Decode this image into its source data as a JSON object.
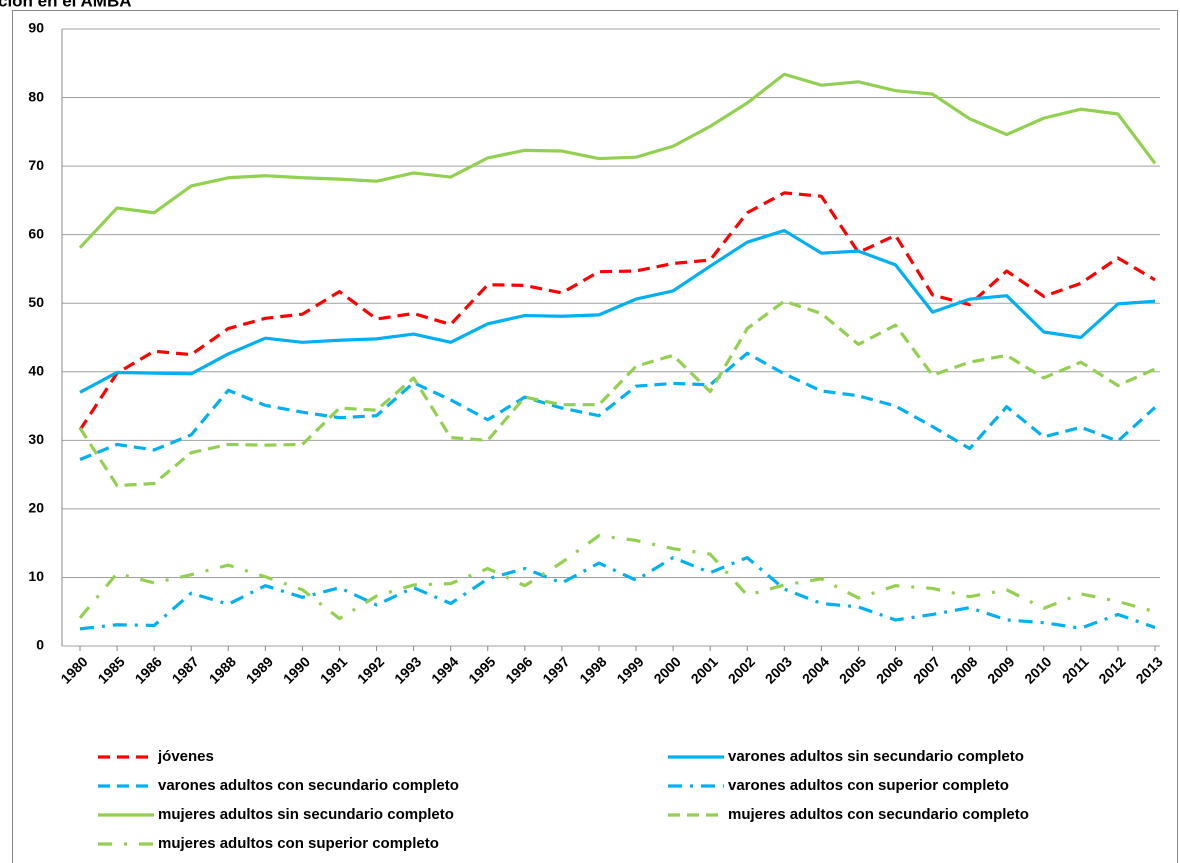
{
  "chart_data": {
    "type": "line",
    "title": "ción en el AMBA",
    "categories": [
      "1980",
      "1985",
      "1986",
      "1987",
      "1988",
      "1989",
      "1990",
      "1991",
      "1992",
      "1993",
      "1994",
      "1995",
      "1996",
      "1997",
      "1998",
      "1999",
      "2000",
      "2001",
      "2002",
      "2003",
      "2004",
      "2005",
      "2006",
      "2007",
      "2008",
      "2009",
      "2010",
      "2011",
      "2012",
      "2013"
    ],
    "ylim": [
      0,
      90
    ],
    "yticks": [
      0,
      10,
      20,
      30,
      40,
      50,
      60,
      70,
      80,
      90
    ],
    "grid": true,
    "series": [
      {
        "name": "jóvenes",
        "color": "#ff0000",
        "dash": "dashed",
        "values": [
          31.5,
          39.8,
          43,
          42.5,
          46.3,
          47.8,
          48.4,
          51.7,
          47.7,
          48.5,
          46.9,
          52.7,
          52.6,
          51.5,
          54.6,
          54.7,
          55.8,
          56.3,
          63.2,
          66.1,
          65.6,
          57.4,
          59.9,
          51.2,
          49.8,
          54.7,
          51,
          52.9,
          56.6,
          53.4
        ]
      },
      {
        "name": "varones adultos sin secundario completo",
        "color": "#00b0f0",
        "dash": "solid",
        "values": [
          37,
          39.9,
          39.8,
          39.7,
          42.6,
          44.9,
          44.3,
          44.6,
          44.8,
          45.5,
          44.3,
          47,
          48.2,
          48.1,
          48.3,
          50.6,
          51.8,
          55.4,
          58.9,
          60.6,
          57.3,
          57.6,
          55.6,
          48.7,
          50.6,
          51.1,
          45.8,
          45,
          49.9,
          50.3
        ]
      },
      {
        "name": "varones adultos con secundario completo",
        "color": "#00b0f0",
        "dash": "dashed",
        "values": [
          27.2,
          29.4,
          28.6,
          30.8,
          37.3,
          35.1,
          34.1,
          33.3,
          33.6,
          38.4,
          35.9,
          33,
          36.3,
          34.7,
          33.6,
          37.9,
          38.3,
          38.1,
          42.7,
          39.7,
          37.2,
          36.5,
          35,
          32,
          28.8,
          34.9,
          30.5,
          31.9,
          29.9,
          34.8
        ]
      },
      {
        "name": "varones adultos con superior completo",
        "color": "#00b0f0",
        "dash": "dashdot",
        "values": [
          2.5,
          3.1,
          3,
          7.7,
          6.1,
          8.8,
          7.1,
          8.5,
          6,
          8.5,
          6.2,
          9.8,
          11.3,
          9.2,
          12.1,
          9.6,
          12.9,
          10.7,
          12.9,
          8.3,
          6.2,
          5.7,
          3.8,
          4.6,
          5.6,
          3.8,
          3.4,
          2.6,
          4.6,
          2.7
        ]
      },
      {
        "name": "mujeres adultos sin secundario completo",
        "color": "#92d050",
        "dash": "solid",
        "values": [
          58.1,
          63.9,
          63.2,
          67.1,
          68.3,
          68.6,
          68.3,
          68.1,
          67.8,
          69,
          68.4,
          71.2,
          72.3,
          72.2,
          71.1,
          71.3,
          72.9,
          75.8,
          79.2,
          83.4,
          81.8,
          82.3,
          81,
          80.5,
          76.9,
          74.6,
          77,
          78.3,
          77.6,
          70.4
        ]
      },
      {
        "name": "mujeres adultos con secundario completo",
        "color": "#92d050",
        "dash": "dashed",
        "values": [
          31.8,
          23.4,
          23.7,
          28.2,
          29.4,
          29.3,
          29.4,
          34.7,
          34.4,
          39.1,
          30.4,
          30,
          36.3,
          35.2,
          35.2,
          40.8,
          42.4,
          37.1,
          46.3,
          50.3,
          48.5,
          44,
          46.8,
          39.5,
          41.4,
          42.4,
          39.1,
          41.4,
          38,
          40.4
        ]
      },
      {
        "name": "mujeres adultos con superior completo",
        "color": "#92d050",
        "dash": "sparse-dashdot",
        "values": [
          4.1,
          10.6,
          9.2,
          10.4,
          11.8,
          10.1,
          8.2,
          4,
          7.3,
          8.9,
          9.1,
          11.3,
          8.8,
          12.2,
          16.1,
          15.4,
          14.2,
          13.4,
          7.4,
          8.9,
          9.8,
          7,
          8.8,
          8.4,
          7.2,
          8.2,
          5.5,
          7.6,
          6.5,
          5
        ]
      }
    ]
  }
}
